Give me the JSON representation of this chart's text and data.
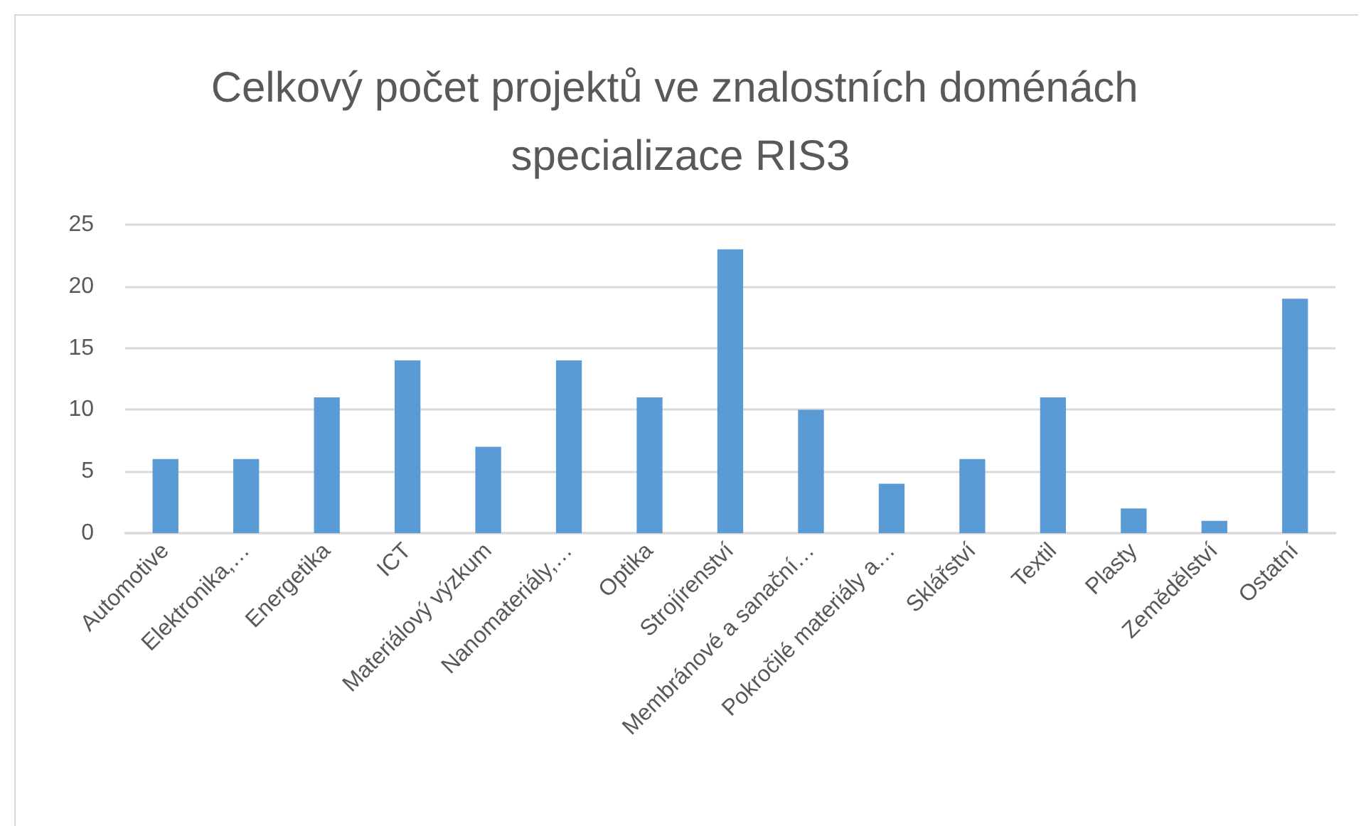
{
  "chart_data": {
    "type": "bar",
    "title": "Celkový počet projektů ve znalostních doménách specializace RIS3",
    "categories": [
      "Automotive",
      "Elektronika,…",
      "Energetika",
      "ICT",
      "Materiálový výzkum",
      "Nanomateriály,…",
      "Optika",
      "Strojírenství",
      "Membránové a sanační…",
      "Pokročilé materiály a…",
      "Sklářství",
      "Textil",
      "Plasty",
      "Zemědělství",
      "Ostatní"
    ],
    "values": [
      6,
      6,
      11,
      14,
      7,
      14,
      11,
      23,
      10,
      4,
      6,
      11,
      2,
      1,
      19
    ],
    "color": "#5b9bd5",
    "ylim": [
      0,
      25
    ],
    "yticks": [
      0,
      5,
      10,
      15,
      20,
      25
    ],
    "grid": "y"
  }
}
